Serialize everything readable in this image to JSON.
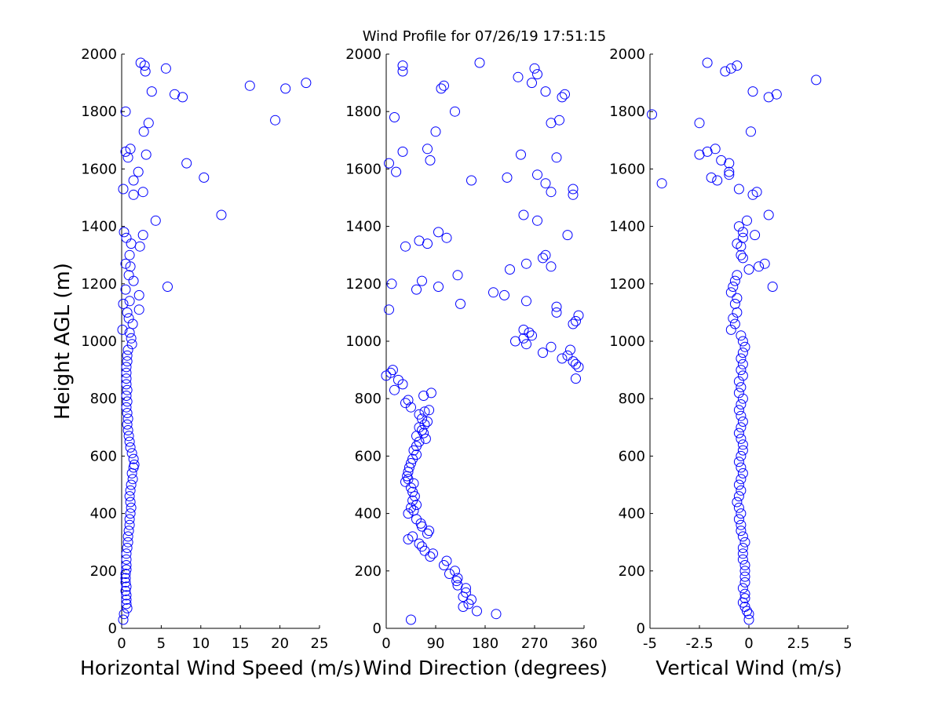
{
  "title": "Wind Profile for  07/26/19 17:51:15",
  "ylabel": "Height AGL (m)",
  "chart_data": [
    {
      "type": "scatter",
      "xlabel": "Horizontal Wind Speed (m/s)",
      "ylabel": "Height AGL (m)",
      "xlim": [
        0,
        25
      ],
      "ylim": [
        0,
        2000
      ],
      "xticks": [
        "0",
        "5",
        "10",
        "15",
        "20",
        "25"
      ],
      "yticks": [
        "0",
        "200",
        "400",
        "600",
        "800",
        "1000",
        "1200",
        "1400",
        "1600",
        "1800",
        "2000"
      ],
      "color": "#0000ff",
      "marker": "circle",
      "points": [
        [
          0.2,
          30
        ],
        [
          0.3,
          50
        ],
        [
          0.7,
          70
        ],
        [
          0.6,
          85
        ],
        [
          0.6,
          100
        ],
        [
          0.6,
          115
        ],
        [
          0.5,
          130
        ],
        [
          0.6,
          145
        ],
        [
          0.5,
          160
        ],
        [
          0.5,
          175
        ],
        [
          0.5,
          190
        ],
        [
          0.6,
          205
        ],
        [
          0.6,
          220
        ],
        [
          0.6,
          240
        ],
        [
          0.6,
          260
        ],
        [
          0.7,
          280
        ],
        [
          0.8,
          300
        ],
        [
          0.8,
          320
        ],
        [
          0.9,
          340
        ],
        [
          1.0,
          360
        ],
        [
          1.0,
          380
        ],
        [
          1.1,
          400
        ],
        [
          1.2,
          420
        ],
        [
          1.1,
          440
        ],
        [
          1.0,
          460
        ],
        [
          1.1,
          480
        ],
        [
          1.2,
          500
        ],
        [
          1.4,
          520
        ],
        [
          1.3,
          540
        ],
        [
          1.5,
          560
        ],
        [
          1.6,
          570
        ],
        [
          1.5,
          590
        ],
        [
          1.3,
          610
        ],
        [
          1.1,
          630
        ],
        [
          1.0,
          650
        ],
        [
          0.9,
          670
        ],
        [
          0.8,
          690
        ],
        [
          0.7,
          710
        ],
        [
          0.8,
          730
        ],
        [
          0.7,
          750
        ],
        [
          0.6,
          770
        ],
        [
          0.7,
          790
        ],
        [
          0.6,
          810
        ],
        [
          0.7,
          830
        ],
        [
          0.6,
          850
        ],
        [
          0.6,
          870
        ],
        [
          0.6,
          890
        ],
        [
          0.6,
          910
        ],
        [
          0.7,
          930
        ],
        [
          0.7,
          950
        ],
        [
          0.8,
          970
        ],
        [
          1.3,
          990
        ],
        [
          1.2,
          1010
        ],
        [
          1.0,
          1030
        ],
        [
          0.1,
          1040
        ],
        [
          1.4,
          1060
        ],
        [
          0.9,
          1080
        ],
        [
          0.7,
          1100
        ],
        [
          2.2,
          1110
        ],
        [
          0.2,
          1130
        ],
        [
          1.0,
          1140
        ],
        [
          2.2,
          1160
        ],
        [
          0.5,
          1180
        ],
        [
          5.8,
          1190
        ],
        [
          1.5,
          1210
        ],
        [
          0.9,
          1230
        ],
        [
          1.1,
          1260
        ],
        [
          0.5,
          1270
        ],
        [
          1.0,
          1300
        ],
        [
          2.3,
          1330
        ],
        [
          1.2,
          1340
        ],
        [
          0.6,
          1360
        ],
        [
          2.7,
          1370
        ],
        [
          0.3,
          1380
        ],
        [
          4.3,
          1420
        ],
        [
          12.6,
          1440
        ],
        [
          1.5,
          1510
        ],
        [
          2.7,
          1520
        ],
        [
          0.2,
          1530
        ],
        [
          10.4,
          1570
        ],
        [
          1.5,
          1560
        ],
        [
          2.1,
          1590
        ],
        [
          8.2,
          1620
        ],
        [
          0.8,
          1640
        ],
        [
          3.1,
          1650
        ],
        [
          0.5,
          1660
        ],
        [
          1.1,
          1670
        ],
        [
          2.8,
          1730
        ],
        [
          3.4,
          1760
        ],
        [
          19.4,
          1770
        ],
        [
          0.5,
          1800
        ],
        [
          7.7,
          1850
        ],
        [
          6.7,
          1860
        ],
        [
          3.8,
          1870
        ],
        [
          20.7,
          1880
        ],
        [
          16.2,
          1890
        ],
        [
          23.3,
          1900
        ],
        [
          3.0,
          1940
        ],
        [
          5.6,
          1950
        ],
        [
          2.9,
          1960
        ],
        [
          2.4,
          1970
        ]
      ]
    },
    {
      "type": "scatter",
      "xlabel": "Wind Direction (degrees)",
      "ylabel": "",
      "xlim": [
        0,
        360
      ],
      "ylim": [
        0,
        2000
      ],
      "xticks": [
        "0",
        "90",
        "180",
        "270",
        "360"
      ],
      "yticks": [
        "0",
        "200",
        "400",
        "600",
        "800",
        "1000",
        "1200",
        "1400",
        "1600",
        "1800",
        "2000"
      ],
      "color": "#0000ff",
      "marker": "circle",
      "points": [
        [
          45,
          30
        ],
        [
          200,
          50
        ],
        [
          165,
          60
        ],
        [
          140,
          75
        ],
        [
          150,
          85
        ],
        [
          155,
          100
        ],
        [
          140,
          110
        ],
        [
          145,
          125
        ],
        [
          145,
          140
        ],
        [
          130,
          150
        ],
        [
          128,
          165
        ],
        [
          130,
          175
        ],
        [
          125,
          200
        ],
        [
          115,
          190
        ],
        [
          105,
          220
        ],
        [
          110,
          235
        ],
        [
          80,
          250
        ],
        [
          85,
          260
        ],
        [
          70,
          270
        ],
        [
          65,
          285
        ],
        [
          60,
          295
        ],
        [
          40,
          310
        ],
        [
          48,
          320
        ],
        [
          75,
          330
        ],
        [
          78,
          340
        ],
        [
          65,
          355
        ],
        [
          63,
          365
        ],
        [
          55,
          380
        ],
        [
          40,
          400
        ],
        [
          50,
          410
        ],
        [
          45,
          420
        ],
        [
          55,
          430
        ],
        [
          48,
          445
        ],
        [
          52,
          460
        ],
        [
          48,
          475
        ],
        [
          45,
          490
        ],
        [
          50,
          505
        ],
        [
          35,
          510
        ],
        [
          40,
          520
        ],
        [
          38,
          530
        ],
        [
          40,
          545
        ],
        [
          42,
          560
        ],
        [
          45,
          575
        ],
        [
          48,
          590
        ],
        [
          55,
          605
        ],
        [
          50,
          620
        ],
        [
          55,
          635
        ],
        [
          60,
          650
        ],
        [
          72,
          660
        ],
        [
          55,
          670
        ],
        [
          68,
          680
        ],
        [
          65,
          690
        ],
        [
          60,
          700
        ],
        [
          70,
          710
        ],
        [
          75,
          720
        ],
        [
          65,
          730
        ],
        [
          60,
          745
        ],
        [
          70,
          755
        ],
        [
          78,
          760
        ],
        [
          45,
          770
        ],
        [
          35,
          785
        ],
        [
          40,
          795
        ],
        [
          68,
          810
        ],
        [
          82,
          820
        ],
        [
          15,
          830
        ],
        [
          30,
          850
        ],
        [
          22,
          865
        ],
        [
          0,
          880
        ],
        [
          8,
          890
        ],
        [
          12,
          900
        ],
        [
          235,
          1000
        ],
        [
          250,
          1010
        ],
        [
          255,
          990
        ],
        [
          260,
          1030
        ],
        [
          265,
          1020
        ],
        [
          250,
          1040
        ],
        [
          285,
          960
        ],
        [
          300,
          980
        ],
        [
          320,
          940
        ],
        [
          330,
          950
        ],
        [
          335,
          970
        ],
        [
          340,
          930
        ],
        [
          345,
          920
        ],
        [
          350,
          910
        ],
        [
          345,
          870
        ],
        [
          340,
          1060
        ],
        [
          345,
          1070
        ],
        [
          350,
          1090
        ],
        [
          310,
          1100
        ],
        [
          310,
          1120
        ],
        [
          135,
          1130
        ],
        [
          195,
          1170
        ],
        [
          215,
          1160
        ],
        [
          55,
          1180
        ],
        [
          95,
          1190
        ],
        [
          5,
          1110
        ],
        [
          10,
          1200
        ],
        [
          65,
          1210
        ],
        [
          225,
          1250
        ],
        [
          130,
          1230
        ],
        [
          285,
          1290
        ],
        [
          290,
          1300
        ],
        [
          255,
          1270
        ],
        [
          300,
          1260
        ],
        [
          35,
          1330
        ],
        [
          75,
          1340
        ],
        [
          60,
          1350
        ],
        [
          110,
          1360
        ],
        [
          95,
          1380
        ],
        [
          330,
          1370
        ],
        [
          275,
          1420
        ],
        [
          250,
          1440
        ],
        [
          255,
          1140
        ],
        [
          340,
          1510
        ],
        [
          340,
          1530
        ],
        [
          300,
          1520
        ],
        [
          290,
          1550
        ],
        [
          155,
          1560
        ],
        [
          220,
          1570
        ],
        [
          275,
          1580
        ],
        [
          18,
          1590
        ],
        [
          80,
          1630
        ],
        [
          5,
          1620
        ],
        [
          310,
          1640
        ],
        [
          245,
          1650
        ],
        [
          30,
          1660
        ],
        [
          75,
          1670
        ],
        [
          90,
          1730
        ],
        [
          300,
          1760
        ],
        [
          315,
          1770
        ],
        [
          15,
          1780
        ],
        [
          125,
          1800
        ],
        [
          320,
          1850
        ],
        [
          325,
          1860
        ],
        [
          290,
          1870
        ],
        [
          100,
          1880
        ],
        [
          105,
          1890
        ],
        [
          265,
          1900
        ],
        [
          240,
          1920
        ],
        [
          275,
          1930
        ],
        [
          30,
          1940
        ],
        [
          270,
          1950
        ],
        [
          30,
          1960
        ],
        [
          170,
          1970
        ]
      ]
    },
    {
      "type": "scatter",
      "xlabel": "Vertical Wind (m/s)",
      "ylabel": "",
      "xlim": [
        -5,
        5
      ],
      "ylim": [
        0,
        2000
      ],
      "xticks": [
        "-5",
        "-2.5",
        "0",
        "2.5",
        "5"
      ],
      "yticks": [
        "0",
        "200",
        "400",
        "600",
        "800",
        "1000",
        "1200",
        "1400",
        "1600",
        "1800",
        "2000"
      ],
      "color": "#0000ff",
      "marker": "circle",
      "points": [
        [
          0.0,
          30
        ],
        [
          0.0,
          50
        ],
        [
          -0.1,
          60
        ],
        [
          -0.2,
          75
        ],
        [
          -0.3,
          90
        ],
        [
          -0.2,
          105
        ],
        [
          -0.2,
          120
        ],
        [
          -0.3,
          140
        ],
        [
          -0.2,
          160
        ],
        [
          -0.2,
          180
        ],
        [
          -0.2,
          200
        ],
        [
          -0.2,
          220
        ],
        [
          -0.3,
          240
        ],
        [
          -0.3,
          260
        ],
        [
          -0.3,
          280
        ],
        [
          -0.2,
          300
        ],
        [
          -0.3,
          320
        ],
        [
          -0.4,
          340
        ],
        [
          -0.4,
          360
        ],
        [
          -0.5,
          380
        ],
        [
          -0.4,
          400
        ],
        [
          -0.5,
          420
        ],
        [
          -0.6,
          440
        ],
        [
          -0.5,
          460
        ],
        [
          -0.4,
          480
        ],
        [
          -0.5,
          500
        ],
        [
          -0.4,
          520
        ],
        [
          -0.3,
          540
        ],
        [
          -0.4,
          560
        ],
        [
          -0.5,
          580
        ],
        [
          -0.4,
          600
        ],
        [
          -0.3,
          620
        ],
        [
          -0.3,
          640
        ],
        [
          -0.4,
          660
        ],
        [
          -0.5,
          680
        ],
        [
          -0.4,
          700
        ],
        [
          -0.3,
          720
        ],
        [
          -0.4,
          740
        ],
        [
          -0.5,
          760
        ],
        [
          -0.4,
          780
        ],
        [
          -0.3,
          800
        ],
        [
          -0.5,
          820
        ],
        [
          -0.4,
          840
        ],
        [
          -0.5,
          860
        ],
        [
          -0.3,
          880
        ],
        [
          -0.4,
          900
        ],
        [
          -0.3,
          920
        ],
        [
          -0.4,
          940
        ],
        [
          -0.3,
          960
        ],
        [
          -0.2,
          980
        ],
        [
          -0.3,
          1000
        ],
        [
          -0.4,
          1020
        ],
        [
          -0.9,
          1040
        ],
        [
          -0.7,
          1060
        ],
        [
          -0.8,
          1080
        ],
        [
          -0.6,
          1100
        ],
        [
          -0.7,
          1130
        ],
        [
          -0.6,
          1150
        ],
        [
          -0.9,
          1170
        ],
        [
          -0.8,
          1190
        ],
        [
          1.2,
          1190
        ],
        [
          -0.7,
          1210
        ],
        [
          -0.6,
          1230
        ],
        [
          0.0,
          1250
        ],
        [
          0.5,
          1260
        ],
        [
          0.8,
          1270
        ],
        [
          -0.3,
          1290
        ],
        [
          -0.4,
          1300
        ],
        [
          -0.4,
          1330
        ],
        [
          -0.6,
          1340
        ],
        [
          -0.3,
          1360
        ],
        [
          0.3,
          1370
        ],
        [
          -0.3,
          1380
        ],
        [
          -0.5,
          1400
        ],
        [
          -0.1,
          1420
        ],
        [
          1.0,
          1440
        ],
        [
          0.2,
          1510
        ],
        [
          0.4,
          1520
        ],
        [
          -0.5,
          1530
        ],
        [
          -4.4,
          1550
        ],
        [
          -1.6,
          1560
        ],
        [
          -1.9,
          1570
        ],
        [
          -1.0,
          1580
        ],
        [
          -1.0,
          1590
        ],
        [
          -1.4,
          1630
        ],
        [
          -1.0,
          1620
        ],
        [
          -2.5,
          1650
        ],
        [
          -2.1,
          1660
        ],
        [
          -1.7,
          1670
        ],
        [
          0.1,
          1730
        ],
        [
          -2.5,
          1760
        ],
        [
          -4.9,
          1790
        ],
        [
          1.4,
          1860
        ],
        [
          1.0,
          1850
        ],
        [
          0.2,
          1870
        ],
        [
          3.4,
          1910
        ],
        [
          -1.2,
          1940
        ],
        [
          -0.9,
          1950
        ],
        [
          -0.6,
          1960
        ],
        [
          -2.1,
          1970
        ]
      ]
    }
  ]
}
